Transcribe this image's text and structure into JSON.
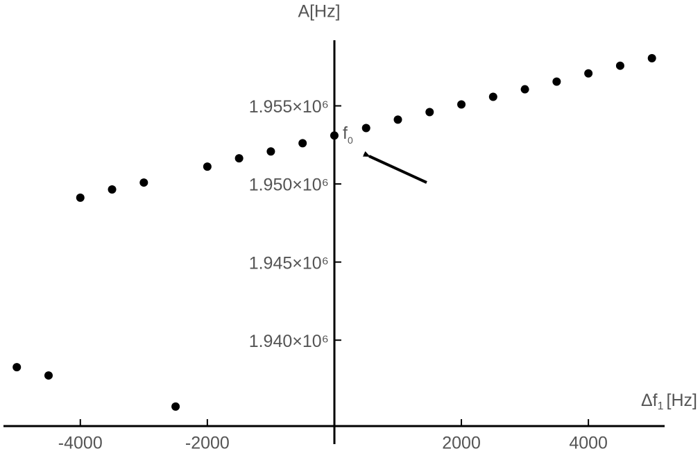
{
  "chart_data": {
    "type": "scatter",
    "x": [
      -5000,
      -4500,
      -4000,
      -3500,
      -3000,
      -2500,
      -2000,
      -1500,
      -1000,
      -500,
      0,
      500,
      1000,
      1500,
      2000,
      2500,
      3000,
      3500,
      4000,
      4500,
      5000
    ],
    "values": [
      1938270,
      1937740,
      1949120,
      1949650,
      1950090,
      1935750,
      1951110,
      1951640,
      1952080,
      1952610,
      1953100,
      1953580,
      1954120,
      1954600,
      1955090,
      1955580,
      1956060,
      1956550,
      1957080,
      1957570,
      1958050
    ],
    "color": "#000000",
    "xlim": [
      -5210,
      5200
    ],
    "ylim": [
      1934500,
      1959200
    ],
    "xticks": [
      -4000,
      -2000,
      2000,
      4000
    ],
    "yticks": [
      {
        "value": 1940000,
        "label": "1.940×10⁶"
      },
      {
        "value": 1945000,
        "label": "1.945×10⁶"
      },
      {
        "value": 1950000,
        "label": "1.950×10⁶"
      },
      {
        "value": 1955000,
        "label": "1.955×10⁶"
      }
    ],
    "y_label": "A[Hz]",
    "x_label": {
      "text": "Δf",
      "subscript": "1",
      "unit": "[Hz]"
    },
    "annotation": {
      "text": "f",
      "subscript": "0"
    }
  }
}
